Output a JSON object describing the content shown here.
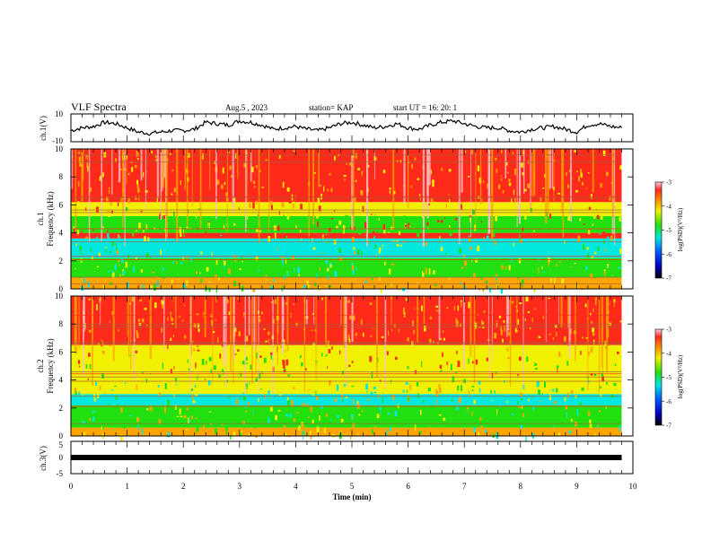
{
  "header": {
    "title": "VLF Spectra",
    "date": "Aug.5   , 2023",
    "station": "station= KAP",
    "start": "start  UT  =   16: 20: 1"
  },
  "chart_data": [
    {
      "type": "line",
      "panel": "ch1-waveform",
      "ylabel": "ch.1(V)",
      "ylim": [
        -10,
        10
      ],
      "ytick_labels": [
        "10",
        "-10"
      ],
      "xlim": [
        0,
        9.8
      ],
      "x": [
        0.0,
        0.2,
        0.4,
        0.6,
        0.8,
        1.0,
        1.2,
        1.4,
        1.6,
        1.8,
        2.0,
        2.2,
        2.4,
        2.6,
        2.8,
        3.0,
        3.2,
        3.4,
        3.6,
        3.8,
        4.0,
        4.2,
        4.4,
        4.6,
        4.8,
        5.0,
        5.2,
        5.4,
        5.6,
        5.8,
        6.0,
        6.2,
        6.4,
        6.6,
        6.8,
        7.0,
        7.2,
        7.4,
        7.6,
        7.8,
        8.0,
        8.2,
        8.4,
        8.6,
        8.8,
        9.0,
        9.2,
        9.4,
        9.6,
        9.8
      ],
      "y": [
        -2,
        0,
        1,
        4,
        3,
        0,
        -3,
        -4,
        -3,
        -2,
        -2,
        -1,
        4,
        3,
        2,
        5,
        4,
        2,
        -1,
        0,
        1,
        -1,
        -2,
        0,
        3,
        4,
        2,
        0,
        1,
        3,
        0,
        -1,
        2,
        4,
        5,
        3,
        1,
        0,
        0,
        -2,
        -3,
        -1,
        0,
        1,
        -1,
        -3,
        2,
        3,
        1,
        0
      ]
    },
    {
      "type": "heatmap",
      "panel": "ch1-spectrogram",
      "ylabel": "ch.1",
      "ylabel2": "Frequency  (kHz)",
      "ylim": [
        0,
        10
      ],
      "ytick_labels": [
        "0",
        "2",
        "4",
        "6",
        "8",
        "10"
      ],
      "colorbar": {
        "label": "log(PSD)(V²/Hz)",
        "range": [
          -7,
          -3
        ],
        "tick_labels": [
          "-3",
          "-4",
          "-5",
          "-6",
          "-7"
        ]
      }
    },
    {
      "type": "heatmap",
      "panel": "ch2-spectrogram",
      "ylabel": "ch.2",
      "ylabel2": "Frequency  (kHz)",
      "ylim": [
        0,
        10
      ],
      "ytick_labels": [
        "0",
        "2",
        "4",
        "6",
        "8",
        "10"
      ],
      "colorbar": {
        "label": "log(PSD)(V²/Hz)",
        "range": [
          -7,
          -3
        ],
        "tick_labels": [
          "-3",
          "-4",
          "-5",
          "-6",
          "-7"
        ]
      }
    },
    {
      "type": "line",
      "panel": "ch3-waveform",
      "ylabel": "ch.3(V)",
      "ylim": [
        -5,
        5
      ],
      "ytick_labels": [
        "5",
        "0",
        "-5"
      ],
      "xlim": [
        0,
        9.8
      ],
      "x": [
        0.0,
        9.8
      ],
      "y": [
        0,
        0
      ]
    }
  ],
  "xaxis": {
    "label": "Time  (min)",
    "range": [
      0,
      10
    ],
    "tick_labels": [
      "0",
      "1",
      "2",
      "3",
      "4",
      "5",
      "6",
      "7",
      "8",
      "9",
      "10"
    ]
  },
  "colors": {
    "red": "#ff2a1a",
    "orange": "#ffa500",
    "yellow": "#f0f000",
    "green": "#22e010",
    "cyan": "#00e8e0",
    "blue": "#0020ff",
    "dark": "#000000"
  }
}
